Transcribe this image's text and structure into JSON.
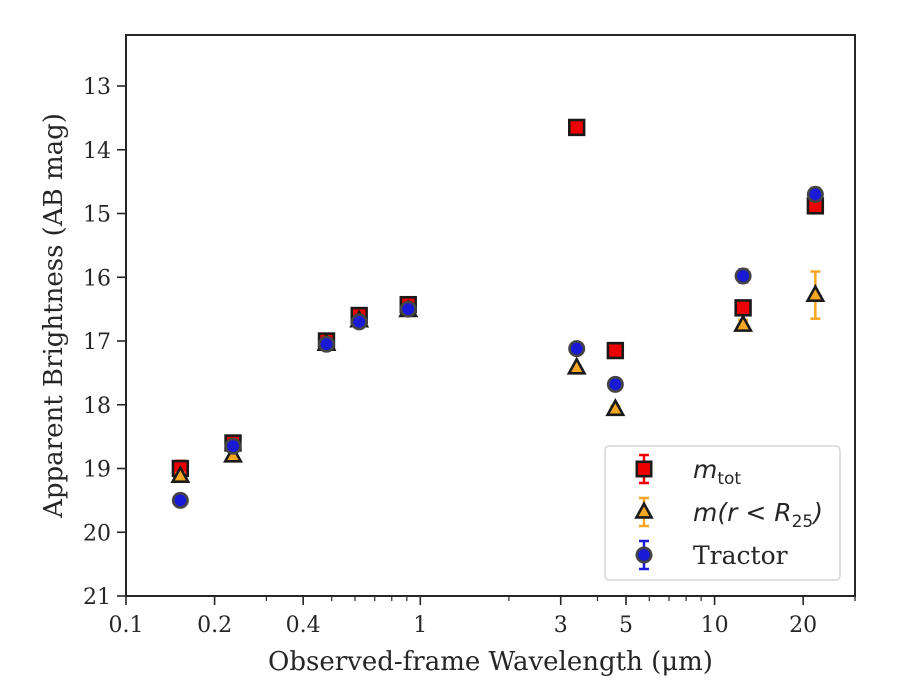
{
  "chart_data": {
    "type": "scatter",
    "xlabel": "Observed-frame Wavelength (μm)",
    "ylabel": "Apparent Brightness (AB mag)",
    "x_scale": "log",
    "xlim": [
      0.1,
      30
    ],
    "ylim": [
      21,
      12.2
    ],
    "y_inverted": true,
    "x_ticks": [
      0.1,
      0.2,
      0.4,
      1,
      3,
      5,
      10,
      20
    ],
    "x_tick_labels": [
      "0.1",
      "0.2",
      "0.4",
      "1",
      "3",
      "5",
      "10",
      "20"
    ],
    "y_ticks": [
      13,
      14,
      15,
      16,
      17,
      18,
      19,
      20,
      21
    ],
    "y_tick_labels": [
      "13",
      "14",
      "15",
      "16",
      "17",
      "18",
      "19",
      "20",
      "21"
    ],
    "grid": false,
    "legend_position": "bottom-right",
    "series": [
      {
        "name": "m_tot",
        "legend_math": {
          "base": "m",
          "sub": "tot"
        },
        "marker": "square",
        "color": "#ee0000",
        "edge_color": "#1a1a1a",
        "points": [
          {
            "x": 0.153,
            "y": 19.0,
            "err": 0.12
          },
          {
            "x": 0.231,
            "y": 18.6,
            "err": 0.05
          },
          {
            "x": 0.48,
            "y": 17.0,
            "err": 0.05
          },
          {
            "x": 0.62,
            "y": 16.6,
            "err": 0.05
          },
          {
            "x": 0.91,
            "y": 16.43,
            "err": 0.05
          },
          {
            "x": 3.4,
            "y": 13.65,
            "err": 0.03
          },
          {
            "x": 4.6,
            "y": 17.15,
            "err": 0.03
          },
          {
            "x": 12.5,
            "y": 16.48,
            "err": 0.05
          },
          {
            "x": 22.0,
            "y": 14.88,
            "err": 0.08
          }
        ]
      },
      {
        "name": "m(r < R_25)",
        "legend_math": {
          "base": "m(r < R",
          "sub": "25",
          "close": ")"
        },
        "marker": "triangle",
        "color": "#f5a623",
        "edge_color": "#1a1a1a",
        "points": [
          {
            "x": 0.153,
            "y": 19.12,
            "err": 0.05
          },
          {
            "x": 0.231,
            "y": 18.8,
            "err": 0.05
          },
          {
            "x": 0.48,
            "y": 17.05,
            "err": 0.05
          },
          {
            "x": 0.62,
            "y": 16.68,
            "err": 0.05
          },
          {
            "x": 0.91,
            "y": 16.52,
            "err": 0.05
          },
          {
            "x": 3.4,
            "y": 17.42,
            "err": 0.03
          },
          {
            "x": 4.6,
            "y": 18.07,
            "err": 0.05
          },
          {
            "x": 12.5,
            "y": 16.75,
            "err": 0.08
          },
          {
            "x": 22.0,
            "y": 16.28,
            "err": 0.37
          }
        ]
      },
      {
        "name": "Tractor",
        "marker": "circle",
        "color": "#1a1ad6",
        "edge_color": "#444444",
        "points": [
          {
            "x": 0.153,
            "y": 19.5,
            "err": 0.08
          },
          {
            "x": 0.231,
            "y": 18.65,
            "err": 0.05
          },
          {
            "x": 0.48,
            "y": 17.05,
            "err": 0.05
          },
          {
            "x": 0.62,
            "y": 16.7,
            "err": 0.05
          },
          {
            "x": 0.91,
            "y": 16.5,
            "err": 0.05
          },
          {
            "x": 3.4,
            "y": 17.12,
            "err": 0.05
          },
          {
            "x": 4.6,
            "y": 17.68,
            "err": 0.08
          },
          {
            "x": 12.5,
            "y": 15.98,
            "err": 0.1
          },
          {
            "x": 22.0,
            "y": 14.7,
            "err": 0.1
          }
        ]
      }
    ]
  }
}
